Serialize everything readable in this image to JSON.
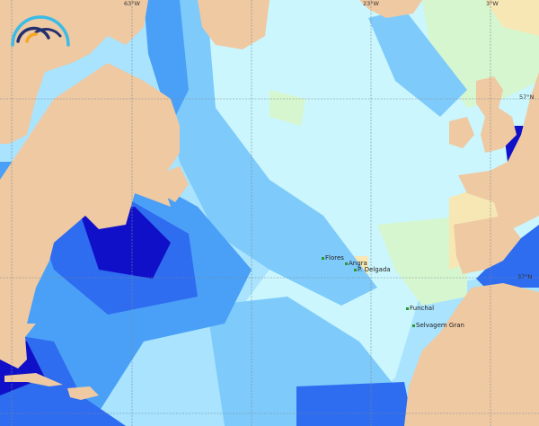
{
  "map": {
    "logo_icon": "wave-arcs-logo",
    "colors": {
      "land": "#efc9a2",
      "ocean_deep": "#1010c8",
      "ocean_1": "#2e6cf0",
      "ocean_2": "#4aa0f6",
      "ocean_3": "#7ecbfb",
      "ocean_4": "#a9e3fd",
      "ocean_5": "#cbf6fd",
      "ocean_green": "#d6f6cf",
      "ocean_yellow": "#f6e7b4"
    },
    "grid_labels": {
      "lon_63w": "63°W",
      "lon_23w": "23°W",
      "lon_3w": "3°W",
      "lat_57n": "57°N",
      "lat_37n": "37°N"
    },
    "places": [
      "Flores",
      "Angra",
      "P. Delgada",
      "Funchal",
      "Selvagem Gran"
    ]
  }
}
